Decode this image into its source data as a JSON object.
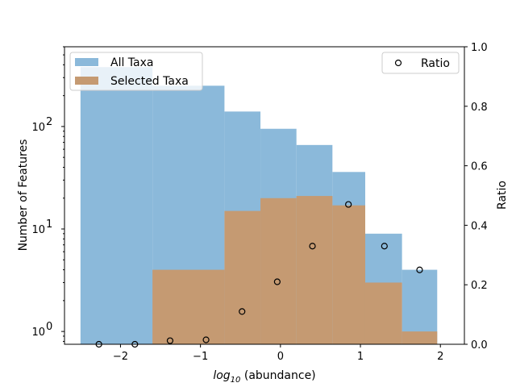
{
  "chart_data": {
    "type": "bar",
    "xlabel_math": "log",
    "xlabel_sub": "10",
    "xlabel_rest": " (abundance)",
    "ylabel": "Number of Features",
    "y2label": "Ratio",
    "xlim": [
      -2.7,
      2.3
    ],
    "ylim_log": [
      0.75,
      600
    ],
    "y2lim": [
      0.0,
      1.0
    ],
    "xticks": [
      -2,
      -1,
      0,
      1,
      2
    ],
    "xtick_labels": [
      "−2",
      "−1",
      "0",
      "1",
      "2"
    ],
    "yticks": [
      1,
      10,
      100
    ],
    "ytick_base": "10",
    "ytick_exps": [
      "0",
      "1",
      "2"
    ],
    "y2ticks": [
      0.0,
      0.2,
      0.4,
      0.6,
      0.8,
      1.0
    ],
    "y2tick_labels": [
      "0.0",
      "0.2",
      "0.4",
      "0.6",
      "0.8",
      "1.0"
    ],
    "bin_edges": [
      -2.5,
      -1.6,
      -0.7,
      -0.25,
      0.2,
      0.65,
      1.1,
      1.55,
      2.0
    ],
    "series": [
      {
        "name": "All Taxa",
        "color": "#8bb9da",
        "edges": [
          -2.5,
          -1.6,
          -0.7,
          -0.25,
          0.2,
          0.65,
          1.06,
          1.52,
          1.96
        ],
        "values": [
          380,
          250,
          140,
          95,
          66,
          36,
          9,
          4
        ]
      },
      {
        "name": "Selected Taxa",
        "color": "#c59a72",
        "edges": [
          -1.6,
          -0.7,
          -0.25,
          0.2,
          0.65,
          1.06,
          1.52,
          1.96
        ],
        "values": [
          4,
          15,
          20,
          21,
          17,
          3,
          1
        ]
      }
    ],
    "ratio": {
      "name": "Ratio",
      "x": [
        -2.27,
        -1.82,
        -1.38,
        -0.93,
        -0.48,
        -0.04,
        0.4,
        0.85,
        1.3,
        1.74
      ],
      "y": [
        0.0,
        0.0,
        0.012,
        0.015,
        0.11,
        0.21,
        0.33,
        0.47,
        0.33,
        0.25
      ]
    },
    "legend_left": "upper-left",
    "legend_right": "upper-right"
  }
}
